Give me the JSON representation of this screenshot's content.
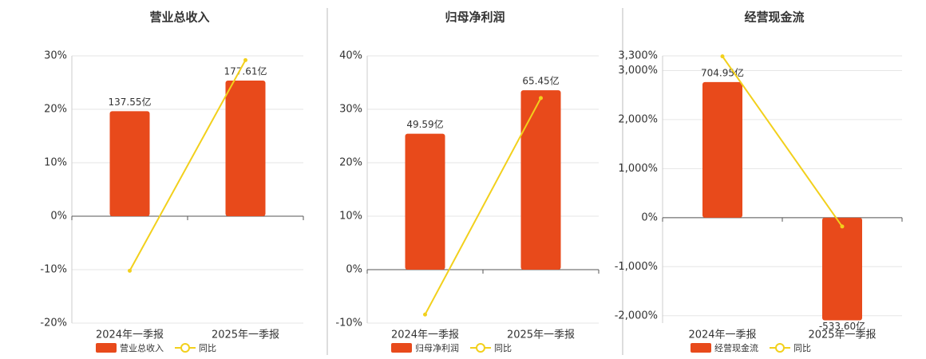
{
  "chart_data": [
    {
      "type": "bar",
      "title": "营业总收入",
      "categories": [
        "2024年一季报",
        "2025年一季报"
      ],
      "series": [
        {
          "name": "营业总收入",
          "type": "bar",
          "axis": "y2",
          "color": "#e84a1b",
          "values": [
            137.55,
            177.61
          ],
          "value_labels": [
            "137.55亿",
            "177.61亿"
          ]
        },
        {
          "name": "同比",
          "type": "line",
          "color": "#f2d01c",
          "values": [
            -10.2,
            29.2
          ]
        }
      ],
      "ylim": [
        -20,
        30
      ],
      "yticks": [
        {
          "value": -20,
          "label": "-20%"
        },
        {
          "value": -10,
          "label": "-10%"
        },
        {
          "value": 0,
          "label": "0%"
        },
        {
          "value": 10,
          "label": "10%"
        },
        {
          "value": 20,
          "label": "20%"
        },
        {
          "value": 30,
          "label": "30%"
        }
      ],
      "y2lim": [
        -140,
        210
      ],
      "grid": true
    },
    {
      "type": "bar",
      "title": "归母净利润",
      "categories": [
        "2024年一季报",
        "2025年一季报"
      ],
      "series": [
        {
          "name": "归母净利润",
          "type": "bar",
          "axis": "y2",
          "color": "#e84a1b",
          "values": [
            49.59,
            65.45
          ],
          "value_labels": [
            "49.59亿",
            "65.45亿"
          ]
        },
        {
          "name": "同比",
          "type": "line",
          "color": "#f2d01c",
          "values": [
            -8.4,
            32.1
          ]
        }
      ],
      "ylim": [
        -10,
        40
      ],
      "yticks": [
        {
          "value": -10,
          "label": "-10%"
        },
        {
          "value": 0,
          "label": "0%"
        },
        {
          "value": 10,
          "label": "10%"
        },
        {
          "value": 20,
          "label": "20%"
        },
        {
          "value": 30,
          "label": "30%"
        },
        {
          "value": 40,
          "label": "40%"
        }
      ],
      "y2lim": [
        -19.5,
        78
      ],
      "grid": true
    },
    {
      "type": "bar",
      "title": "经营现金流",
      "categories": [
        "2024年一季报",
        "2025年一季报"
      ],
      "series": [
        {
          "name": "经营现金流",
          "type": "bar",
          "axis": "y2",
          "color": "#e84a1b",
          "values": [
            704.95,
            -533.6
          ],
          "value_labels": [
            "704.95亿",
            "-533.60亿"
          ]
        },
        {
          "name": "同比",
          "type": "line",
          "color": "#f2d01c",
          "values": [
            3290,
            -180
          ]
        }
      ],
      "ylim": [
        -2150,
        3300
      ],
      "yticks": [
        {
          "value": -2000,
          "label": "-2,000%"
        },
        {
          "value": -1000,
          "label": "-1,000%"
        },
        {
          "value": 0,
          "label": "0%"
        },
        {
          "value": 1000,
          "label": "1,000%"
        },
        {
          "value": 2000,
          "label": "2,000%"
        },
        {
          "value": 3000,
          "label": "3,000%"
        },
        {
          "value": 3300,
          "label": "3,300%"
        }
      ],
      "y2lim": [
        -548,
        841
      ],
      "grid": true
    }
  ]
}
